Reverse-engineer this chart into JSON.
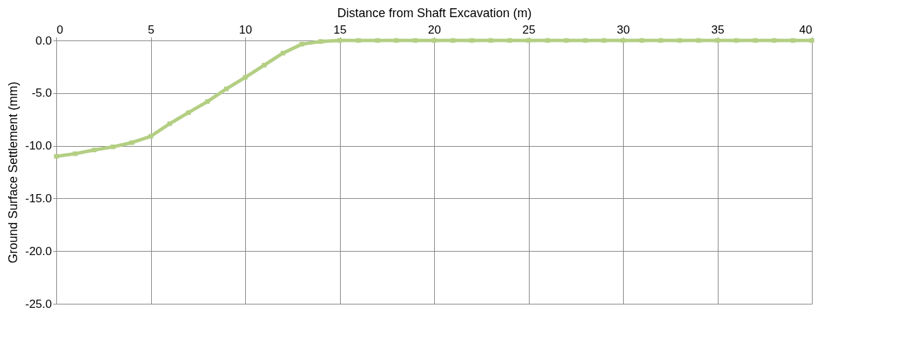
{
  "chart_data": {
    "type": "line",
    "xlabel": "Distance from Shaft Excavation (m)",
    "ylabel": "Ground Surface Settlement (mm)",
    "x": [
      0,
      1,
      2,
      3,
      4,
      5,
      6,
      7,
      8,
      9,
      10,
      11,
      12,
      13,
      14,
      15,
      16,
      17,
      18,
      19,
      20,
      21,
      22,
      23,
      24,
      25,
      26,
      27,
      28,
      29,
      30,
      31,
      32,
      33,
      34,
      35,
      36,
      37,
      38,
      39,
      40
    ],
    "series": [
      {
        "color": "#b3cf83",
        "values": [
          -11.0,
          -10.75,
          -10.4,
          -10.1,
          -9.7,
          -9.1,
          -7.9,
          -6.85,
          -5.8,
          -4.6,
          -3.5,
          -2.35,
          -1.2,
          -0.35,
          -0.1,
          0,
          0,
          0,
          0,
          0,
          0,
          0,
          0,
          0,
          0,
          0,
          0,
          0,
          0,
          0,
          0,
          0,
          0,
          0,
          0,
          0,
          0,
          0,
          0,
          0,
          0
        ]
      }
    ],
    "xlim": [
      0,
      40
    ],
    "xticks": [
      0,
      5,
      10,
      15,
      20,
      25,
      30,
      35,
      40
    ],
    "ylim": [
      -25,
      0
    ],
    "yticks": [
      {
        "value": 0,
        "label": "0.0"
      },
      {
        "value": -5,
        "label": "-5.0"
      },
      {
        "value": -10,
        "label": "-10.0"
      },
      {
        "value": -15,
        "label": "-15.0"
      },
      {
        "value": -20,
        "label": "-20.0"
      },
      {
        "value": -25,
        "label": "-25.0"
      }
    ],
    "grid": true,
    "marker": "square",
    "line_style": "solid",
    "legend": false
  }
}
